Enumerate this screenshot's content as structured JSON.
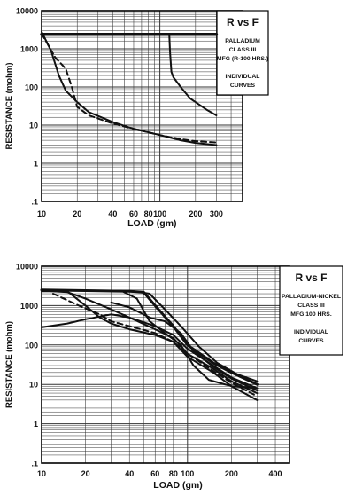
{
  "chart_data": [
    {
      "type": "line",
      "title": "R vs F",
      "legend_lines": [
        "PALLADIUM",
        "CLASS III",
        "MFG (R-100 HRS.)",
        "INDIVIDUAL",
        "CURVES"
      ],
      "xlabel": "LOAD (gm)",
      "ylabel": "RESISTANCE (mohm)",
      "xscale": "log",
      "yscale": "log",
      "xlim": [
        10,
        500
      ],
      "ylim": [
        0.1,
        10000
      ],
      "x_tick_labels": [
        {
          "value": 10,
          "label": "10"
        },
        {
          "value": 20,
          "label": "20"
        },
        {
          "value": 40,
          "label": "40"
        },
        {
          "value": 60,
          "label": "60"
        },
        {
          "value": 80,
          "label": "80"
        },
        {
          "value": 100,
          "label": "100"
        },
        {
          "value": 200,
          "label": "200"
        },
        {
          "value": 300,
          "label": "300"
        }
      ],
      "y_tick_labels": [
        {
          "value": 10000,
          "label": "10000"
        },
        {
          "value": 1000,
          "label": "1000"
        },
        {
          "value": 100,
          "label": "100"
        },
        {
          "value": 10,
          "label": "10"
        },
        {
          "value": 1,
          "label": "1"
        },
        {
          "value": 0.1,
          "label": ".1"
        }
      ],
      "grid": true,
      "legend_position": "top-right",
      "series": [
        {
          "style": "solid",
          "width": 3.5,
          "points": [
            [
              10,
              2400
            ],
            [
              300,
              2400
            ]
          ]
        },
        {
          "style": "solid",
          "width": 2,
          "points": [
            [
              10,
              2800
            ],
            [
              12,
              900
            ],
            [
              14,
              200
            ],
            [
              16,
              80
            ],
            [
              20,
              40
            ],
            [
              25,
              22
            ],
            [
              40,
              12
            ],
            [
              60,
              8
            ],
            [
              100,
              5.5
            ],
            [
              150,
              4
            ],
            [
              200,
              3.4
            ],
            [
              300,
              3
            ]
          ]
        },
        {
          "style": "dashed",
          "width": 2,
          "points": [
            [
              10,
              2500
            ],
            [
              11,
              1500
            ],
            [
              13,
              600
            ],
            [
              16,
              300
            ],
            [
              18,
              100
            ],
            [
              20,
              30
            ],
            [
              25,
              18
            ],
            [
              40,
              11
            ],
            [
              60,
              8
            ],
            [
              100,
              5.5
            ],
            [
              150,
              4.3
            ],
            [
              200,
              3.8
            ],
            [
              300,
              3.5
            ]
          ]
        },
        {
          "style": "solid",
          "width": 2,
          "points": [
            [
              120,
              2400
            ],
            [
              122,
              800
            ],
            [
              125,
              250
            ],
            [
              130,
              180
            ],
            [
              150,
              100
            ],
            [
              180,
              50
            ],
            [
              200,
              40
            ],
            [
              250,
              25
            ],
            [
              300,
              18
            ]
          ]
        }
      ]
    },
    {
      "type": "line",
      "title": "R vs F",
      "legend_lines": [
        "PALLADIUM-NICKEL",
        "CLASS III",
        "MFG  100  HRS.",
        "INDIVIDUAL",
        "CURVES"
      ],
      "xlabel": "LOAD (gm)",
      "ylabel": "RESISTANCE (mohm)",
      "xscale": "log",
      "yscale": "log",
      "xlim": [
        10,
        500
      ],
      "ylim": [
        0.1,
        10000
      ],
      "x_tick_labels": [
        {
          "value": 10,
          "label": "10"
        },
        {
          "value": 20,
          "label": "20"
        },
        {
          "value": 40,
          "label": "40"
        },
        {
          "value": 60,
          "label": "60"
        },
        {
          "value": 80,
          "label": "80"
        },
        {
          "value": 100,
          "label": "100"
        },
        {
          "value": 200,
          "label": "200"
        },
        {
          "value": 400,
          "label": "400"
        }
      ],
      "y_tick_labels": [
        {
          "value": 10000,
          "label": "10000"
        },
        {
          "value": 1000,
          "label": "1000"
        },
        {
          "value": 100,
          "label": "100"
        },
        {
          "value": 10,
          "label": "10"
        },
        {
          "value": 1,
          "label": "1"
        },
        {
          "value": 0.1,
          "label": ".1"
        }
      ],
      "grid": true,
      "legend_position": "top-right",
      "series": [
        {
          "style": "solid",
          "width": 3,
          "points": [
            [
              10,
              2500
            ],
            [
              20,
              2400
            ],
            [
              40,
              2300
            ],
            [
              50,
              2200
            ],
            [
              60,
              1000
            ],
            [
              80,
              300
            ],
            [
              100,
              100
            ],
            [
              150,
              35
            ],
            [
              200,
              20
            ],
            [
              300,
              10
            ]
          ]
        },
        {
          "style": "solid",
          "width": 2,
          "points": [
            [
              10,
              2400
            ],
            [
              15,
              2200
            ],
            [
              20,
              1500
            ],
            [
              30,
              800
            ],
            [
              40,
              500
            ],
            [
              60,
              250
            ],
            [
              80,
              150
            ],
            [
              100,
              60
            ],
            [
              150,
              25
            ],
            [
              200,
              12
            ],
            [
              300,
              6
            ]
          ]
        },
        {
          "style": "solid",
          "width": 2,
          "points": [
            [
              10,
              280
            ],
            [
              15,
              350
            ],
            [
              20,
              450
            ],
            [
              30,
              600
            ],
            [
              40,
              500
            ],
            [
              60,
              300
            ],
            [
              80,
              180
            ],
            [
              100,
              80
            ],
            [
              150,
              30
            ],
            [
              200,
              15
            ],
            [
              300,
              8
            ]
          ]
        },
        {
          "style": "solid",
          "width": 2,
          "points": [
            [
              10,
              2300
            ],
            [
              15,
              2300
            ],
            [
              20,
              1000
            ],
            [
              25,
              500
            ],
            [
              30,
              350
            ],
            [
              40,
              250
            ],
            [
              60,
              180
            ],
            [
              80,
              120
            ],
            [
              100,
              50
            ],
            [
              150,
              20
            ],
            [
              200,
              9
            ],
            [
              300,
              4
            ]
          ]
        },
        {
          "style": "dashed",
          "width": 2,
          "points": [
            [
              12,
              2000
            ],
            [
              18,
              1000
            ],
            [
              25,
              600
            ],
            [
              30,
              400
            ],
            [
              40,
              300
            ],
            [
              60,
              200
            ],
            [
              80,
              120
            ],
            [
              100,
              60
            ],
            [
              150,
              22
            ],
            [
              200,
              11
            ],
            [
              300,
              5
            ]
          ]
        },
        {
          "style": "solid",
          "width": 2,
          "points": [
            [
              25,
              2400
            ],
            [
              35,
              2400
            ],
            [
              45,
              1500
            ],
            [
              55,
              400
            ],
            [
              70,
              200
            ],
            [
              90,
              100
            ],
            [
              110,
              30
            ],
            [
              140,
              13
            ],
            [
              200,
              9
            ],
            [
              300,
              8
            ]
          ]
        },
        {
          "style": "solid",
          "width": 2,
          "points": [
            [
              40,
              2400
            ],
            [
              55,
              2000
            ],
            [
              70,
              800
            ],
            [
              90,
              300
            ],
            [
              120,
              90
            ],
            [
              160,
              35
            ],
            [
              220,
              18
            ],
            [
              300,
              12
            ]
          ]
        },
        {
          "style": "solid",
          "width": 2,
          "points": [
            [
              30,
              1200
            ],
            [
              40,
              900
            ],
            [
              55,
              500
            ],
            [
              70,
              400
            ],
            [
              90,
              200
            ],
            [
              110,
              70
            ],
            [
              150,
              28
            ],
            [
              200,
              14
            ],
            [
              300,
              7
            ]
          ]
        }
      ]
    }
  ]
}
